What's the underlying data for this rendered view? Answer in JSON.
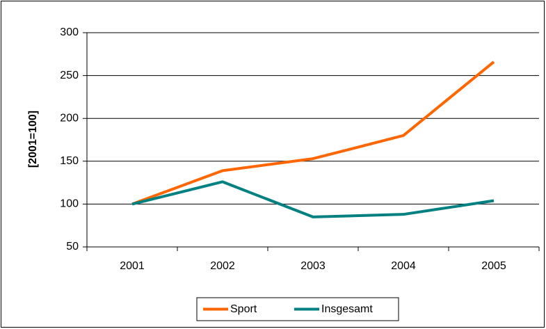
{
  "chart_data": {
    "type": "line",
    "y_label": "[2001=100]",
    "categories": [
      "2001",
      "2002",
      "2003",
      "2004",
      "2005"
    ],
    "series": [
      {
        "name": "Sport",
        "color": "#ff6600",
        "values": [
          100,
          139,
          153,
          180,
          266
        ]
      },
      {
        "name": "Insgesamt",
        "color": "#008080",
        "values": [
          100,
          126,
          85,
          88,
          104
        ]
      }
    ],
    "ylim": [
      50,
      300
    ],
    "yticks": [
      50,
      100,
      150,
      200,
      250,
      300
    ],
    "grid": true,
    "legend": "bottom"
  }
}
